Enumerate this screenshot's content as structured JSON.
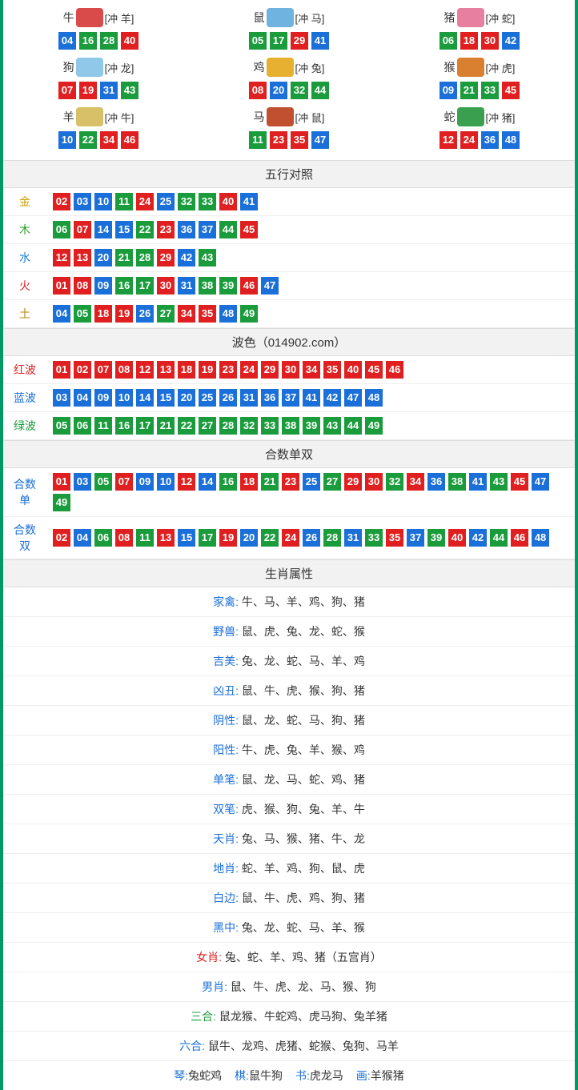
{
  "colors": {
    "border": "#009966",
    "red": "#e02020",
    "blue": "#1a6fd8",
    "green": "#1a9b3c",
    "header_bg": "#f2f2f2",
    "row_border": "#eeeeee"
  },
  "zodiac": [
    {
      "name": "牛",
      "clash": "[冲 羊]",
      "icon_color": "#d94b4b",
      "nums": [
        {
          "n": "04",
          "c": "blue"
        },
        {
          "n": "16",
          "c": "green"
        },
        {
          "n": "28",
          "c": "green"
        },
        {
          "n": "40",
          "c": "red"
        }
      ]
    },
    {
      "name": "鼠",
      "clash": "[冲 马]",
      "icon_color": "#6fb4e0",
      "nums": [
        {
          "n": "05",
          "c": "green"
        },
        {
          "n": "17",
          "c": "green"
        },
        {
          "n": "29",
          "c": "red"
        },
        {
          "n": "41",
          "c": "blue"
        }
      ]
    },
    {
      "name": "猪",
      "clash": "[冲 蛇]",
      "icon_color": "#e77fa0",
      "nums": [
        {
          "n": "06",
          "c": "green"
        },
        {
          "n": "18",
          "c": "red"
        },
        {
          "n": "30",
          "c": "red"
        },
        {
          "n": "42",
          "c": "blue"
        }
      ]
    },
    {
      "name": "狗",
      "clash": "[冲 龙]",
      "icon_color": "#8fc8e8",
      "nums": [
        {
          "n": "07",
          "c": "red"
        },
        {
          "n": "19",
          "c": "red"
        },
        {
          "n": "31",
          "c": "blue"
        },
        {
          "n": "43",
          "c": "green"
        }
      ]
    },
    {
      "name": "鸡",
      "clash": "[冲 兔]",
      "icon_color": "#e8b030",
      "nums": [
        {
          "n": "08",
          "c": "red"
        },
        {
          "n": "20",
          "c": "blue"
        },
        {
          "n": "32",
          "c": "green"
        },
        {
          "n": "44",
          "c": "green"
        }
      ]
    },
    {
      "name": "猴",
      "clash": "[冲 虎]",
      "icon_color": "#d98030",
      "nums": [
        {
          "n": "09",
          "c": "blue"
        },
        {
          "n": "21",
          "c": "green"
        },
        {
          "n": "33",
          "c": "green"
        },
        {
          "n": "45",
          "c": "red"
        }
      ]
    },
    {
      "name": "羊",
      "clash": "[冲 牛]",
      "icon_color": "#d8c068",
      "nums": [
        {
          "n": "10",
          "c": "blue"
        },
        {
          "n": "22",
          "c": "green"
        },
        {
          "n": "34",
          "c": "red"
        },
        {
          "n": "46",
          "c": "red"
        }
      ]
    },
    {
      "name": "马",
      "clash": "[冲 鼠]",
      "icon_color": "#c05030",
      "nums": [
        {
          "n": "11",
          "c": "green"
        },
        {
          "n": "23",
          "c": "red"
        },
        {
          "n": "35",
          "c": "red"
        },
        {
          "n": "47",
          "c": "blue"
        }
      ]
    },
    {
      "name": "蛇",
      "clash": "[冲 猪]",
      "icon_color": "#3aa050",
      "nums": [
        {
          "n": "12",
          "c": "red"
        },
        {
          "n": "24",
          "c": "red"
        },
        {
          "n": "36",
          "c": "blue"
        },
        {
          "n": "48",
          "c": "blue"
        }
      ]
    }
  ],
  "sections": {
    "wuxing_title": "五行对照",
    "bose_title": "波色（014902.com）",
    "heshu_title": "合数单双",
    "shengxiao_title": "生肖属性"
  },
  "wuxing": [
    {
      "label": "金",
      "label_cls": "gold",
      "nums": [
        {
          "n": "02",
          "c": "red"
        },
        {
          "n": "03",
          "c": "blue"
        },
        {
          "n": "10",
          "c": "blue"
        },
        {
          "n": "11",
          "c": "green"
        },
        {
          "n": "24",
          "c": "red"
        },
        {
          "n": "25",
          "c": "blue"
        },
        {
          "n": "32",
          "c": "green"
        },
        {
          "n": "33",
          "c": "green"
        },
        {
          "n": "40",
          "c": "red"
        },
        {
          "n": "41",
          "c": "blue"
        }
      ]
    },
    {
      "label": "木",
      "label_cls": "wood",
      "nums": [
        {
          "n": "06",
          "c": "green"
        },
        {
          "n": "07",
          "c": "red"
        },
        {
          "n": "14",
          "c": "blue"
        },
        {
          "n": "15",
          "c": "blue"
        },
        {
          "n": "22",
          "c": "green"
        },
        {
          "n": "23",
          "c": "red"
        },
        {
          "n": "36",
          "c": "blue"
        },
        {
          "n": "37",
          "c": "blue"
        },
        {
          "n": "44",
          "c": "green"
        },
        {
          "n": "45",
          "c": "red"
        }
      ]
    },
    {
      "label": "水",
      "label_cls": "water",
      "nums": [
        {
          "n": "12",
          "c": "red"
        },
        {
          "n": "13",
          "c": "red"
        },
        {
          "n": "20",
          "c": "blue"
        },
        {
          "n": "21",
          "c": "green"
        },
        {
          "n": "28",
          "c": "green"
        },
        {
          "n": "29",
          "c": "red"
        },
        {
          "n": "42",
          "c": "blue"
        },
        {
          "n": "43",
          "c": "green"
        }
      ]
    },
    {
      "label": "火",
      "label_cls": "fire",
      "nums": [
        {
          "n": "01",
          "c": "red"
        },
        {
          "n": "08",
          "c": "red"
        },
        {
          "n": "09",
          "c": "blue"
        },
        {
          "n": "16",
          "c": "green"
        },
        {
          "n": "17",
          "c": "green"
        },
        {
          "n": "30",
          "c": "red"
        },
        {
          "n": "31",
          "c": "blue"
        },
        {
          "n": "38",
          "c": "green"
        },
        {
          "n": "39",
          "c": "green"
        },
        {
          "n": "46",
          "c": "red"
        },
        {
          "n": "47",
          "c": "blue"
        }
      ]
    },
    {
      "label": "土",
      "label_cls": "earth",
      "nums": [
        {
          "n": "04",
          "c": "blue"
        },
        {
          "n": "05",
          "c": "green"
        },
        {
          "n": "18",
          "c": "red"
        },
        {
          "n": "19",
          "c": "red"
        },
        {
          "n": "26",
          "c": "blue"
        },
        {
          "n": "27",
          "c": "green"
        },
        {
          "n": "34",
          "c": "red"
        },
        {
          "n": "35",
          "c": "red"
        },
        {
          "n": "48",
          "c": "blue"
        },
        {
          "n": "49",
          "c": "green"
        }
      ]
    }
  ],
  "bose": [
    {
      "label": "红波",
      "label_cls": "redtxt",
      "nums": [
        {
          "n": "01",
          "c": "red"
        },
        {
          "n": "02",
          "c": "red"
        },
        {
          "n": "07",
          "c": "red"
        },
        {
          "n": "08",
          "c": "red"
        },
        {
          "n": "12",
          "c": "red"
        },
        {
          "n": "13",
          "c": "red"
        },
        {
          "n": "18",
          "c": "red"
        },
        {
          "n": "19",
          "c": "red"
        },
        {
          "n": "23",
          "c": "red"
        },
        {
          "n": "24",
          "c": "red"
        },
        {
          "n": "29",
          "c": "red"
        },
        {
          "n": "30",
          "c": "red"
        },
        {
          "n": "34",
          "c": "red"
        },
        {
          "n": "35",
          "c": "red"
        },
        {
          "n": "40",
          "c": "red"
        },
        {
          "n": "45",
          "c": "red"
        },
        {
          "n": "46",
          "c": "red"
        }
      ]
    },
    {
      "label": "蓝波",
      "label_cls": "bluetxt",
      "nums": [
        {
          "n": "03",
          "c": "blue"
        },
        {
          "n": "04",
          "c": "blue"
        },
        {
          "n": "09",
          "c": "blue"
        },
        {
          "n": "10",
          "c": "blue"
        },
        {
          "n": "14",
          "c": "blue"
        },
        {
          "n": "15",
          "c": "blue"
        },
        {
          "n": "20",
          "c": "blue"
        },
        {
          "n": "25",
          "c": "blue"
        },
        {
          "n": "26",
          "c": "blue"
        },
        {
          "n": "31",
          "c": "blue"
        },
        {
          "n": "36",
          "c": "blue"
        },
        {
          "n": "37",
          "c": "blue"
        },
        {
          "n": "41",
          "c": "blue"
        },
        {
          "n": "42",
          "c": "blue"
        },
        {
          "n": "47",
          "c": "blue"
        },
        {
          "n": "48",
          "c": "blue"
        }
      ]
    },
    {
      "label": "绿波",
      "label_cls": "greentxt",
      "nums": [
        {
          "n": "05",
          "c": "green"
        },
        {
          "n": "06",
          "c": "green"
        },
        {
          "n": "11",
          "c": "green"
        },
        {
          "n": "16",
          "c": "green"
        },
        {
          "n": "17",
          "c": "green"
        },
        {
          "n": "21",
          "c": "green"
        },
        {
          "n": "22",
          "c": "green"
        },
        {
          "n": "27",
          "c": "green"
        },
        {
          "n": "28",
          "c": "green"
        },
        {
          "n": "32",
          "c": "green"
        },
        {
          "n": "33",
          "c": "green"
        },
        {
          "n": "38",
          "c": "green"
        },
        {
          "n": "39",
          "c": "green"
        },
        {
          "n": "43",
          "c": "green"
        },
        {
          "n": "44",
          "c": "green"
        },
        {
          "n": "49",
          "c": "green"
        }
      ]
    }
  ],
  "heshu": [
    {
      "label": "合数单",
      "label_cls": "bluetxt",
      "nums": [
        {
          "n": "01",
          "c": "red"
        },
        {
          "n": "03",
          "c": "blue"
        },
        {
          "n": "05",
          "c": "green"
        },
        {
          "n": "07",
          "c": "red"
        },
        {
          "n": "09",
          "c": "blue"
        },
        {
          "n": "10",
          "c": "blue"
        },
        {
          "n": "12",
          "c": "red"
        },
        {
          "n": "14",
          "c": "blue"
        },
        {
          "n": "16",
          "c": "green"
        },
        {
          "n": "18",
          "c": "red"
        },
        {
          "n": "21",
          "c": "green"
        },
        {
          "n": "23",
          "c": "red"
        },
        {
          "n": "25",
          "c": "blue"
        },
        {
          "n": "27",
          "c": "green"
        },
        {
          "n": "29",
          "c": "red"
        },
        {
          "n": "30",
          "c": "red"
        },
        {
          "n": "32",
          "c": "green"
        },
        {
          "n": "34",
          "c": "red"
        },
        {
          "n": "36",
          "c": "blue"
        },
        {
          "n": "38",
          "c": "green"
        },
        {
          "n": "41",
          "c": "blue"
        },
        {
          "n": "43",
          "c": "green"
        },
        {
          "n": "45",
          "c": "red"
        },
        {
          "n": "47",
          "c": "blue"
        },
        {
          "n": "49",
          "c": "green"
        }
      ]
    },
    {
      "label": "合数双",
      "label_cls": "bluetxt",
      "nums": [
        {
          "n": "02",
          "c": "red"
        },
        {
          "n": "04",
          "c": "blue"
        },
        {
          "n": "06",
          "c": "green"
        },
        {
          "n": "08",
          "c": "red"
        },
        {
          "n": "11",
          "c": "green"
        },
        {
          "n": "13",
          "c": "red"
        },
        {
          "n": "15",
          "c": "blue"
        },
        {
          "n": "17",
          "c": "green"
        },
        {
          "n": "19",
          "c": "red"
        },
        {
          "n": "20",
          "c": "blue"
        },
        {
          "n": "22",
          "c": "green"
        },
        {
          "n": "24",
          "c": "red"
        },
        {
          "n": "26",
          "c": "blue"
        },
        {
          "n": "28",
          "c": "green"
        },
        {
          "n": "31",
          "c": "blue"
        },
        {
          "n": "33",
          "c": "green"
        },
        {
          "n": "35",
          "c": "red"
        },
        {
          "n": "37",
          "c": "blue"
        },
        {
          "n": "39",
          "c": "green"
        },
        {
          "n": "40",
          "c": "red"
        },
        {
          "n": "42",
          "c": "blue"
        },
        {
          "n": "44",
          "c": "green"
        },
        {
          "n": "46",
          "c": "red"
        },
        {
          "n": "48",
          "c": "blue"
        }
      ]
    }
  ],
  "attrs": [
    {
      "label": "家禽",
      "value": "牛、马、羊、鸡、狗、猪",
      "cls": ""
    },
    {
      "label": "野兽",
      "value": "鼠、虎、兔、龙、蛇、猴",
      "cls": ""
    },
    {
      "label": "吉美",
      "value": "兔、龙、蛇、马、羊、鸡",
      "cls": ""
    },
    {
      "label": "凶丑",
      "value": "鼠、牛、虎、猴、狗、猪",
      "cls": ""
    },
    {
      "label": "阴性",
      "value": "鼠、龙、蛇、马、狗、猪",
      "cls": ""
    },
    {
      "label": "阳性",
      "value": "牛、虎、兔、羊、猴、鸡",
      "cls": ""
    },
    {
      "label": "单笔",
      "value": "鼠、龙、马、蛇、鸡、猪",
      "cls": ""
    },
    {
      "label": "双笔",
      "value": "虎、猴、狗、兔、羊、牛",
      "cls": ""
    },
    {
      "label": "天肖",
      "value": "兔、马、猴、猪、牛、龙",
      "cls": ""
    },
    {
      "label": "地肖",
      "value": "蛇、羊、鸡、狗、鼠、虎",
      "cls": ""
    },
    {
      "label": "白边",
      "value": "鼠、牛、虎、鸡、狗、猪",
      "cls": ""
    },
    {
      "label": "黑中",
      "value": "兔、龙、蛇、马、羊、猴",
      "cls": ""
    },
    {
      "label": "女肖",
      "value": "兔、蛇、羊、鸡、猪（五宫肖）",
      "cls": "red"
    },
    {
      "label": "男肖",
      "value": "鼠、牛、虎、龙、马、猴、狗",
      "cls": ""
    },
    {
      "label": "三合",
      "value": "鼠龙猴、牛蛇鸡、虎马狗、兔羊猪",
      "cls": "green"
    },
    {
      "label": "六合",
      "value": "鼠牛、龙鸡、虎猪、蛇猴、兔狗、马羊",
      "cls": ""
    }
  ],
  "four": [
    {
      "k": "琴",
      "v": "兔蛇鸡"
    },
    {
      "k": "棋",
      "v": "鼠牛狗"
    },
    {
      "k": "书",
      "v": "虎龙马"
    },
    {
      "k": "画",
      "v": "羊猴猪"
    }
  ]
}
